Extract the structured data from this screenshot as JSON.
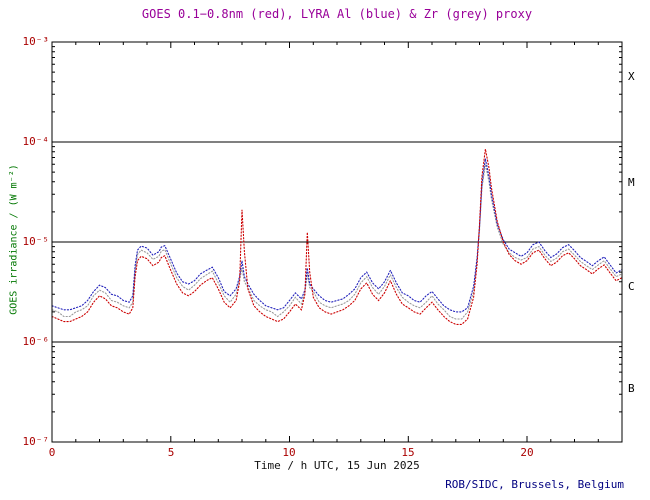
{
  "chart": {
    "title": "GOES 0.1−0.8nm (red), LYRA Al (blue) & Zr (grey) proxy",
    "ylabel": "GOES irradiance / (W m⁻²)",
    "xlabel": "Time / h UTC, 15 Jun 2025",
    "credit": "ROB/SIDC, Brussels, Belgium",
    "y_tick_labels": [
      "10⁻³",
      "10⁻⁴",
      "10⁻⁵",
      "10⁻⁶",
      "10⁻⁷"
    ],
    "x_tick_labels": [
      "0",
      "5",
      "10",
      "15",
      "20"
    ],
    "class_labels": [
      "X",
      "M",
      "C",
      "B"
    ],
    "colors": {
      "title": "#990099",
      "tick_labels": "#aa0000",
      "y_axis_title": "#007700",
      "credit": "#000080",
      "goes_red": "#cc0000",
      "lyra_al_blue": "#2222bb",
      "lyra_zr_grey": "#9a9a9a"
    }
  },
  "chart_data": {
    "type": "line",
    "title": "GOES 0.1−0.8nm (red), LYRA Al (blue) & Zr (grey) proxy",
    "xlabel": "Time / h UTC, 15 Jun 2025",
    "ylabel": "GOES irradiance / (W m⁻²)",
    "x_range": [
      0,
      24
    ],
    "y_range": [
      1e-07,
      0.001
    ],
    "y_scale": "log",
    "grid": false,
    "flare_class_lines": [
      0.0001,
      1e-05,
      1e-06
    ],
    "flare_class_labels": [
      "X",
      "M",
      "C",
      "B"
    ],
    "values_scale": 1e-06,
    "values_unit": "values are in units of 1e-6 W m⁻²",
    "x": [
      0,
      0.25,
      0.5,
      0.75,
      1,
      1.25,
      1.5,
      1.75,
      2,
      2.25,
      2.5,
      2.75,
      3,
      3.25,
      3.4,
      3.5,
      3.6,
      3.75,
      4,
      4.25,
      4.5,
      4.6,
      4.75,
      5,
      5.25,
      5.5,
      5.75,
      6,
      6.25,
      6.5,
      6.75,
      7,
      7.25,
      7.5,
      7.75,
      7.9,
      8,
      8.1,
      8.25,
      8.5,
      8.75,
      9,
      9.25,
      9.5,
      9.75,
      10,
      10.25,
      10.5,
      10.65,
      10.75,
      10.85,
      11,
      11.25,
      11.5,
      11.75,
      12,
      12.25,
      12.5,
      12.75,
      13,
      13.25,
      13.5,
      13.75,
      14,
      14.25,
      14.5,
      14.75,
      15,
      15.25,
      15.5,
      15.75,
      16,
      16.25,
      16.5,
      16.75,
      17,
      17.25,
      17.5,
      17.75,
      17.9,
      18,
      18.1,
      18.25,
      18.4,
      18.5,
      18.75,
      19,
      19.25,
      19.5,
      19.75,
      20,
      20.25,
      20.5,
      20.75,
      21,
      21.25,
      21.5,
      21.75,
      22,
      22.25,
      22.5,
      22.75,
      23,
      23.25,
      23.5,
      23.75,
      24
    ],
    "series": [
      {
        "id": "goes-red",
        "name": "GOES 0.1−0.8nm",
        "color": "#cc0000",
        "values": [
          1.8,
          1.7,
          1.6,
          1.6,
          1.7,
          1.8,
          2.0,
          2.5,
          2.9,
          2.7,
          2.3,
          2.2,
          2.0,
          1.9,
          2.2,
          4.5,
          6.5,
          7.2,
          6.8,
          5.8,
          6.3,
          7.0,
          7.3,
          5.2,
          3.8,
          3.1,
          2.9,
          3.2,
          3.7,
          4.1,
          4.4,
          3.4,
          2.5,
          2.2,
          2.6,
          4.0,
          21.0,
          8.0,
          3.4,
          2.3,
          2.0,
          1.8,
          1.7,
          1.6,
          1.7,
          2.0,
          2.4,
          2.1,
          3.0,
          12.5,
          5.0,
          2.8,
          2.2,
          2.0,
          1.9,
          2.0,
          2.1,
          2.3,
          2.6,
          3.4,
          3.9,
          3.0,
          2.6,
          3.1,
          4.1,
          3.0,
          2.4,
          2.2,
          2.0,
          1.9,
          2.2,
          2.5,
          2.1,
          1.8,
          1.6,
          1.5,
          1.5,
          1.7,
          2.8,
          6.0,
          15.0,
          45.0,
          85.0,
          55.0,
          35.0,
          16.0,
          10.0,
          7.5,
          6.5,
          6.0,
          6.5,
          7.8,
          8.3,
          6.8,
          5.8,
          6.3,
          7.3,
          7.8,
          6.8,
          5.8,
          5.3,
          4.8,
          5.4,
          5.9,
          4.9,
          4.1,
          4.4
        ]
      },
      {
        "id": "lyra-al-blue",
        "name": "LYRA Al proxy",
        "color": "#2222bb",
        "values": [
          2.3,
          2.2,
          2.1,
          2.1,
          2.2,
          2.3,
          2.6,
          3.2,
          3.7,
          3.5,
          3.0,
          2.9,
          2.6,
          2.5,
          2.9,
          5.8,
          8.3,
          9.1,
          8.7,
          7.4,
          8.0,
          8.9,
          9.2,
          6.7,
          4.9,
          4.0,
          3.8,
          4.1,
          4.8,
          5.2,
          5.6,
          4.4,
          3.2,
          2.9,
          3.4,
          4.5,
          6.5,
          4.5,
          3.8,
          3.0,
          2.6,
          2.3,
          2.2,
          2.1,
          2.2,
          2.6,
          3.1,
          2.7,
          3.3,
          5.5,
          3.8,
          3.4,
          2.9,
          2.6,
          2.5,
          2.6,
          2.7,
          3.0,
          3.4,
          4.4,
          5.0,
          3.9,
          3.4,
          4.0,
          5.2,
          3.9,
          3.1,
          2.9,
          2.6,
          2.5,
          2.9,
          3.2,
          2.7,
          2.3,
          2.1,
          2.0,
          2.0,
          2.2,
          3.6,
          7.0,
          14.0,
          38.0,
          68.0,
          45.0,
          30.0,
          15.0,
          10.5,
          8.5,
          7.8,
          7.2,
          7.8,
          9.4,
          10.0,
          8.2,
          7.0,
          7.6,
          8.8,
          9.4,
          8.2,
          7.0,
          6.4,
          5.8,
          6.5,
          7.1,
          5.9,
          4.9,
          5.3
        ]
      },
      {
        "id": "lyra-zr-grey",
        "name": "LYRA Zr proxy",
        "color": "#9a9a9a",
        "values": [
          2.1,
          2.0,
          1.8,
          1.8,
          2.0,
          2.1,
          2.3,
          2.9,
          3.3,
          3.1,
          2.6,
          2.5,
          2.3,
          2.2,
          2.5,
          5.2,
          7.5,
          8.3,
          7.8,
          6.7,
          7.2,
          8.1,
          8.4,
          6.0,
          4.4,
          3.6,
          3.3,
          3.7,
          4.3,
          4.7,
          5.1,
          3.9,
          2.9,
          2.5,
          3.0,
          4.2,
          5.5,
          4.0,
          3.5,
          2.6,
          2.3,
          2.1,
          2.0,
          1.8,
          2.0,
          2.3,
          2.8,
          2.4,
          3.1,
          4.8,
          3.5,
          3.2,
          2.5,
          2.3,
          2.2,
          2.3,
          2.4,
          2.6,
          3.0,
          3.9,
          4.5,
          3.5,
          3.0,
          3.6,
          4.7,
          3.5,
          2.8,
          2.5,
          2.3,
          2.2,
          2.5,
          2.9,
          2.4,
          2.1,
          1.8,
          1.7,
          1.7,
          2.0,
          3.2,
          6.5,
          13.0,
          34.0,
          60.0,
          40.0,
          27.0,
          14.0,
          9.5,
          7.8,
          7.0,
          6.6,
          7.0,
          8.5,
          9.0,
          7.4,
          6.4,
          6.9,
          8.0,
          8.5,
          7.4,
          6.4,
          5.8,
          5.3,
          5.9,
          6.5,
          5.4,
          4.5,
          4.8
        ]
      }
    ]
  }
}
